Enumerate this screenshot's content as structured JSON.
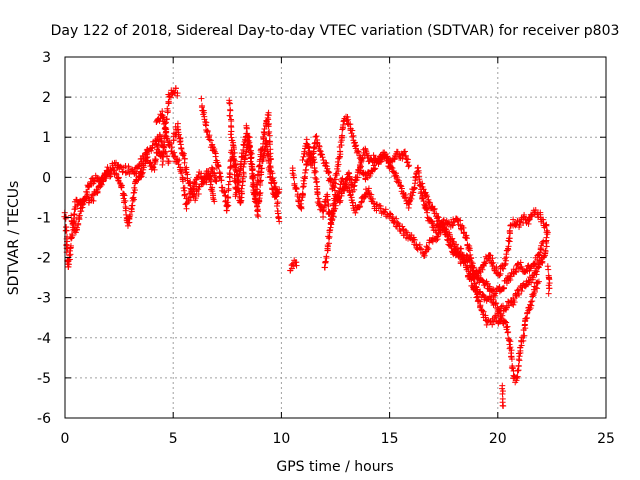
{
  "chart_data": {
    "type": "scatter",
    "title": "Day 122 of 2018, Sidereal Day-to-day VTEC variation (SDTVAR) for receiver p803",
    "xlabel": "GPS time / hours",
    "ylabel": "SDTVAR / TECUs",
    "xlim": [
      0,
      25
    ],
    "ylim": [
      -6,
      3
    ],
    "xticks": [
      0,
      5,
      10,
      15,
      20,
      25
    ],
    "yticks": [
      -6,
      -5,
      -4,
      -3,
      -2,
      -1,
      0,
      1,
      2,
      3
    ],
    "grid": true,
    "marker": "+",
    "marker_color": "#ff0000",
    "series": [
      {
        "name": "p803",
        "tracks": [
          [
            [
              0.0,
              -0.9
            ],
            [
              0.15,
              -2.3
            ],
            [
              0.3,
              -1.5
            ],
            [
              0.5,
              -0.6
            ],
            [
              0.8,
              -0.7
            ],
            [
              1.1,
              -0.2
            ],
            [
              1.4,
              0.0
            ],
            [
              1.7,
              -0.1
            ],
            [
              2.0,
              0.2
            ],
            [
              2.3,
              0.3
            ],
            [
              2.6,
              0.2
            ],
            [
              2.9,
              0.2
            ],
            [
              3.2,
              0.1
            ],
            [
              3.5,
              0.4
            ],
            [
              3.8,
              0.6
            ],
            [
              4.1,
              0.8
            ],
            [
              4.4,
              1.0
            ],
            [
              4.6,
              0.6
            ],
            [
              4.8,
              0.4
            ]
          ],
          [
            [
              0.3,
              -1.0
            ],
            [
              0.5,
              -1.4
            ],
            [
              0.7,
              -0.9
            ],
            [
              0.9,
              -0.5
            ],
            [
              1.2,
              -0.6
            ],
            [
              1.5,
              -0.3
            ],
            [
              1.8,
              0.0
            ],
            [
              2.1,
              0.1
            ],
            [
              2.4,
              0.1
            ],
            [
              2.7,
              -0.4
            ],
            [
              2.9,
              -1.2
            ],
            [
              3.1,
              -0.7
            ],
            [
              3.3,
              -0.1
            ],
            [
              3.6,
              0.3
            ]
          ],
          [
            [
              3.5,
              0.0
            ],
            [
              3.8,
              0.5
            ],
            [
              4.1,
              0.2
            ],
            [
              4.3,
              0.8
            ],
            [
              4.5,
              0.4
            ],
            [
              4.7,
              1.4
            ],
            [
              4.8,
              2.0
            ],
            [
              5.0,
              2.2
            ],
            [
              5.2,
              2.1
            ]
          ],
          [
            [
              4.2,
              1.3
            ],
            [
              4.5,
              1.6
            ],
            [
              4.7,
              1.0
            ],
            [
              5.0,
              0.6
            ],
            [
              5.3,
              0.3
            ],
            [
              5.5,
              -0.2
            ],
            [
              5.6,
              -0.7
            ],
            [
              5.9,
              -0.3
            ],
            [
              6.2,
              0.1
            ],
            [
              6.5,
              -0.1
            ],
            [
              6.8,
              0.2
            ],
            [
              7.0,
              -0.1
            ]
          ],
          [
            [
              5.0,
              0.9
            ],
            [
              5.2,
              1.3
            ],
            [
              5.4,
              0.7
            ],
            [
              5.7,
              -0.1
            ],
            [
              6.0,
              -0.5
            ],
            [
              6.3,
              -0.2
            ],
            [
              6.6,
              0.2
            ],
            [
              6.9,
              -0.6
            ]
          ],
          [
            [
              6.3,
              1.9
            ],
            [
              6.5,
              1.3
            ],
            [
              6.7,
              0.9
            ],
            [
              6.9,
              0.6
            ],
            [
              7.1,
              0.2
            ],
            [
              7.3,
              -0.3
            ],
            [
              7.5,
              -0.8
            ],
            [
              7.7,
              0.6
            ],
            [
              7.9,
              0.3
            ],
            [
              8.1,
              -0.7
            ],
            [
              8.3,
              0.4
            ],
            [
              8.5,
              1.0
            ],
            [
              8.7,
              -0.2
            ],
            [
              8.9,
              -0.9
            ],
            [
              9.1,
              0.3
            ],
            [
              9.3,
              0.9
            ],
            [
              9.5,
              0.0
            ],
            [
              9.7,
              -0.5
            ],
            [
              9.9,
              -0.3
            ]
          ],
          [
            [
              7.6,
              1.9
            ],
            [
              7.7,
              1.0
            ],
            [
              7.8,
              0.7
            ],
            [
              7.9,
              -0.4
            ],
            [
              8.1,
              0.2
            ],
            [
              8.4,
              1.2
            ],
            [
              8.6,
              0.5
            ],
            [
              8.8,
              -0.6
            ],
            [
              9.0,
              0.4
            ],
            [
              9.2,
              1.1
            ],
            [
              9.4,
              1.6
            ],
            [
              9.5,
              0.2
            ],
            [
              9.7,
              -0.2
            ],
            [
              9.9,
              -1.1
            ]
          ],
          [
            [
              10.4,
              -2.3
            ],
            [
              10.6,
              -2.1
            ],
            [
              10.7,
              -2.2
            ]
          ],
          [
            [
              10.5,
              0.2
            ],
            [
              10.7,
              -0.3
            ],
            [
              10.9,
              -0.8
            ],
            [
              11.1,
              0.1
            ],
            [
              11.3,
              0.6
            ],
            [
              11.5,
              0.4
            ],
            [
              11.7,
              -0.6
            ],
            [
              11.9,
              -0.9
            ],
            [
              12.1,
              -0.5
            ],
            [
              12.3,
              -1.1
            ],
            [
              12.5,
              -0.4
            ],
            [
              12.7,
              -0.6
            ],
            [
              12.9,
              -0.2
            ],
            [
              13.1,
              0.1
            ],
            [
              13.3,
              -0.3
            ],
            [
              13.5,
              0.0
            ],
            [
              13.7,
              0.4
            ]
          ],
          [
            [
              11.0,
              0.5
            ],
            [
              11.2,
              0.9
            ],
            [
              11.4,
              0.3
            ],
            [
              11.6,
              1.0
            ],
            [
              11.8,
              0.6
            ],
            [
              12.0,
              0.4
            ],
            [
              12.2,
              0.0
            ],
            [
              12.4,
              -0.3
            ],
            [
              12.6,
              0.2
            ],
            [
              12.8,
              1.1
            ],
            [
              12.9,
              1.5
            ],
            [
              13.1,
              1.4
            ],
            [
              13.3,
              1.0
            ],
            [
              13.5,
              0.7
            ],
            [
              13.7,
              0.5
            ],
            [
              13.9,
              0.7
            ],
            [
              14.1,
              0.4
            ],
            [
              14.3,
              0.5
            ],
            [
              14.5,
              0.4
            ],
            [
              14.7,
              0.6
            ],
            [
              14.9,
              0.5
            ],
            [
              15.1,
              0.4
            ],
            [
              15.3,
              0.6
            ],
            [
              15.5,
              0.5
            ],
            [
              15.7,
              0.6
            ],
            [
              15.9,
              0.3
            ]
          ],
          [
            [
              12.0,
              -2.3
            ],
            [
              12.1,
              -1.9
            ],
            [
              12.2,
              -1.5
            ],
            [
              12.3,
              -1.1
            ],
            [
              12.5,
              -0.7
            ],
            [
              12.8,
              -0.1
            ],
            [
              13.1,
              -0.3
            ],
            [
              13.4,
              -0.8
            ],
            [
              13.7,
              -0.6
            ],
            [
              14.0,
              -0.3
            ],
            [
              14.3,
              -0.7
            ],
            [
              14.6,
              -0.8
            ],
            [
              14.9,
              -0.9
            ],
            [
              15.1,
              -1.0
            ],
            [
              15.4,
              -1.2
            ],
            [
              15.7,
              -1.4
            ],
            [
              16.0,
              -1.5
            ],
            [
              16.3,
              -1.7
            ],
            [
              16.6,
              -1.9
            ],
            [
              16.9,
              -1.6
            ],
            [
              17.2,
              -1.5
            ],
            [
              17.5,
              -1.1
            ],
            [
              17.8,
              -1.2
            ],
            [
              18.1,
              -1.0
            ],
            [
              18.4,
              -1.3
            ],
            [
              18.7,
              -1.8
            ],
            [
              18.9,
              -2.5
            ],
            [
              19.1,
              -3.1
            ],
            [
              19.3,
              -3.4
            ],
            [
              19.5,
              -3.6
            ],
            [
              19.7,
              -3.6
            ],
            [
              19.9,
              -3.5
            ],
            [
              20.1,
              -3.6
            ]
          ],
          [
            [
              13.6,
              0.3
            ],
            [
              13.9,
              0.0
            ],
            [
              14.2,
              0.2
            ],
            [
              14.5,
              0.4
            ],
            [
              14.8,
              0.6
            ],
            [
              15.0,
              0.3
            ],
            [
              15.3,
              0.0
            ],
            [
              15.6,
              -0.4
            ],
            [
              15.9,
              -0.7
            ],
            [
              16.1,
              -0.3
            ],
            [
              16.3,
              0.2
            ],
            [
              16.5,
              -0.5
            ],
            [
              16.8,
              -1.0
            ],
            [
              17.1,
              -1.3
            ],
            [
              17.4,
              -1.1
            ],
            [
              17.7,
              -1.6
            ],
            [
              18.0,
              -1.9
            ],
            [
              18.3,
              -1.8
            ],
            [
              18.6,
              -2.3
            ],
            [
              18.9,
              -2.8
            ],
            [
              19.2,
              -2.9
            ],
            [
              19.5,
              -3.0
            ],
            [
              19.8,
              -3.1
            ],
            [
              20.1,
              -3.3
            ],
            [
              20.4,
              -3.2
            ],
            [
              20.7,
              -3.1
            ],
            [
              21.0,
              -2.8
            ],
            [
              21.3,
              -2.7
            ],
            [
              21.6,
              -2.5
            ],
            [
              21.9,
              -2.2
            ],
            [
              22.2,
              -1.9
            ],
            [
              22.3,
              -1.4
            ],
            [
              22.2,
              -1.2
            ]
          ],
          [
            [
              16.5,
              -0.2
            ],
            [
              16.8,
              -0.6
            ],
            [
              17.1,
              -0.9
            ],
            [
              17.4,
              -1.2
            ],
            [
              17.7,
              -1.4
            ],
            [
              18.0,
              -1.7
            ],
            [
              18.3,
              -2.1
            ],
            [
              18.6,
              -2.0
            ],
            [
              18.9,
              -2.3
            ],
            [
              19.2,
              -2.6
            ],
            [
              19.5,
              -2.7
            ],
            [
              19.8,
              -2.9
            ],
            [
              20.1,
              -2.8
            ],
            [
              20.4,
              -2.6
            ],
            [
              20.7,
              -2.4
            ],
            [
              21.0,
              -2.2
            ],
            [
              21.3,
              -2.3
            ],
            [
              21.6,
              -2.2
            ],
            [
              21.9,
              -2.0
            ],
            [
              22.1,
              -1.6
            ]
          ],
          [
            [
              18.6,
              -2.4
            ],
            [
              18.9,
              -2.5
            ],
            [
              19.2,
              -2.3
            ],
            [
              19.4,
              -2.1
            ],
            [
              19.6,
              -1.9
            ],
            [
              19.8,
              -2.2
            ],
            [
              20.0,
              -2.4
            ],
            [
              20.3,
              -2.2
            ],
            [
              20.5,
              -1.7
            ],
            [
              20.6,
              -1.2
            ],
            [
              20.8,
              -1.1
            ],
            [
              21.0,
              -1.2
            ],
            [
              21.2,
              -1.0
            ],
            [
              21.4,
              -1.1
            ],
            [
              21.6,
              -0.9
            ],
            [
              21.8,
              -0.9
            ],
            [
              22.0,
              -1.0
            ],
            [
              22.2,
              -1.2
            ]
          ],
          [
            [
              20.0,
              -3.3
            ],
            [
              20.2,
              -3.5
            ],
            [
              20.4,
              -3.7
            ],
            [
              20.6,
              -4.3
            ],
            [
              20.7,
              -4.9
            ],
            [
              20.8,
              -5.1
            ],
            [
              20.9,
              -5.0
            ],
            [
              21.0,
              -4.4
            ],
            [
              21.1,
              -4.1
            ],
            [
              21.2,
              -3.9
            ],
            [
              21.3,
              -3.5
            ],
            [
              21.5,
              -3.2
            ],
            [
              21.7,
              -2.8
            ],
            [
              21.9,
              -2.6
            ]
          ],
          [
            [
              22.3,
              -2.3
            ],
            [
              22.4,
              -2.6
            ],
            [
              22.35,
              -2.9
            ]
          ],
          [
            [
              20.2,
              -5.2
            ],
            [
              20.25,
              -5.7
            ]
          ]
        ]
      }
    ]
  }
}
